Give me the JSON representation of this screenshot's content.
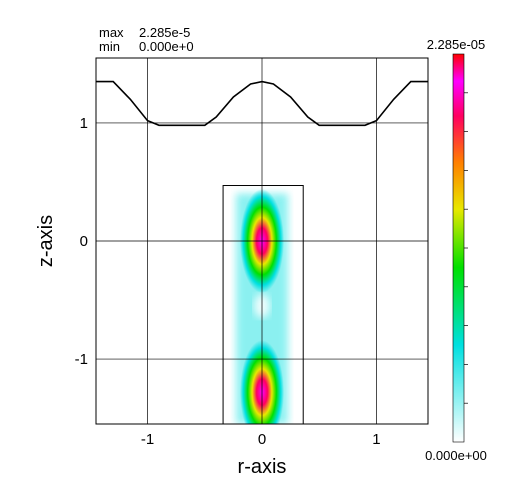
{
  "header": {
    "max_label": "max",
    "max_value": "2.285e-5",
    "min_label": "min",
    "min_value": "0.000e+0"
  },
  "colorbar": {
    "max_label": "2.285e-05",
    "min_label": "0.000e+00",
    "stops": [
      "#ffffff",
      "#00e0e0",
      "#00e000",
      "#e8e800",
      "#ff8000",
      "#ff0060",
      "#ff00ff",
      "#ff0000"
    ],
    "tick_count": 10
  },
  "chart_data": {
    "type": "heatmap",
    "title": "",
    "xlabel": "r-axis",
    "ylabel": "z-axis",
    "xlim": [
      -1.45,
      1.45
    ],
    "ylim": [
      -1.55,
      1.55
    ],
    "xticks": [
      -1,
      0,
      1
    ],
    "xtick_labels": [
      "-1",
      "0",
      "1"
    ],
    "yticks": [
      -1,
      0,
      1
    ],
    "ytick_labels": [
      "-1",
      "0",
      "1"
    ],
    "grid": true,
    "value_range": [
      0,
      2.285e-05
    ],
    "boundary": [
      [
        -1.45,
        1.35
      ],
      [
        -1.3,
        1.35
      ],
      [
        -1.15,
        1.2
      ],
      [
        -1.0,
        1.02
      ],
      [
        -0.9,
        0.98
      ],
      [
        -0.5,
        0.98
      ],
      [
        -0.4,
        1.05
      ],
      [
        -0.25,
        1.22
      ],
      [
        -0.1,
        1.33
      ],
      [
        0.0,
        1.35
      ],
      [
        0.1,
        1.33
      ],
      [
        0.25,
        1.22
      ],
      [
        0.4,
        1.05
      ],
      [
        0.5,
        0.98
      ],
      [
        0.9,
        0.98
      ],
      [
        1.0,
        1.02
      ],
      [
        1.15,
        1.2
      ],
      [
        1.3,
        1.35
      ],
      [
        1.45,
        1.35
      ]
    ],
    "domain_rect": {
      "r": [
        -0.34,
        0.36
      ],
      "z": [
        -1.55,
        0.47
      ]
    },
    "peaks": [
      {
        "r": 0.0,
        "z": 0.0,
        "value": 2.285e-05
      },
      {
        "r": 0.0,
        "z": -1.28,
        "value": 2.1e-05
      }
    ]
  }
}
